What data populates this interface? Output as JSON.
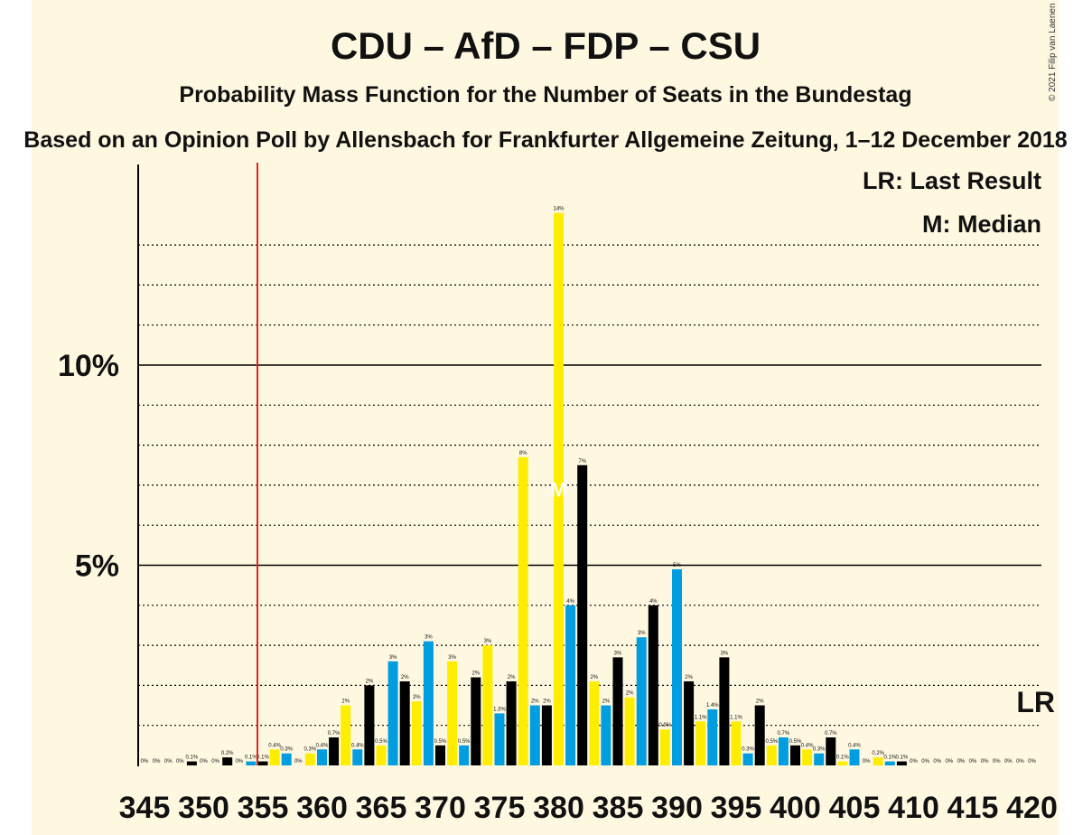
{
  "title": "CDU – AfD – FDP – CSU",
  "subtitle": "Probability Mass Function for the Number of Seats in the Bundestag",
  "subtitle2": "Based on an Opinion Poll by Allensbach for Frankfurter Allgemeine Zeitung, 1–12 December 2018",
  "copyright": "© 2021 Filip van Laenen",
  "legend": {
    "lr": "LR: Last Result",
    "m": "M: Median"
  },
  "lr_marker_label": "LR",
  "median_marker_label": "M",
  "colors": {
    "cdu": "#000000",
    "fdp": "#ffed00",
    "blue": "#009ee0",
    "lastresult": "#e2231a",
    "background": "#fff8e1"
  },
  "chart_data": {
    "type": "bar",
    "x_start": 345,
    "x_end": 420,
    "x_ticks": [
      345,
      350,
      355,
      360,
      365,
      370,
      375,
      380,
      385,
      390,
      395,
      400,
      405,
      410,
      415,
      420
    ],
    "y_ticks": [
      {
        "value": 5,
        "label": "5%"
      },
      {
        "value": 10,
        "label": "10%"
      }
    ],
    "ylim": [
      0,
      14
    ],
    "last_result": 355,
    "median": 380,
    "values": [
      0,
      0,
      0,
      0,
      0.1,
      0,
      0,
      0.2,
      0,
      0.1,
      0.1,
      0.4,
      0.3,
      0,
      0.3,
      0.4,
      0.7,
      1.5,
      0.4,
      2.0,
      0.5,
      2.6,
      2.1,
      1.6,
      3.1,
      0.5,
      2.6,
      0.5,
      2.2,
      3.0,
      1.3,
      2.1,
      7.7,
      1.5,
      1.5,
      13.8,
      4.0,
      7.5,
      2.1,
      1.5,
      2.7,
      1.7,
      3.2,
      4.0,
      0.9,
      4.9,
      2.1,
      1.1,
      1.4,
      2.7,
      1.1,
      0.3,
      1.5,
      0.5,
      0.7,
      0.5,
      0.4,
      0.3,
      0.7,
      0.1,
      0.4,
      0,
      0.2,
      0.1,
      0.1,
      0,
      0,
      0,
      0,
      0,
      0,
      0,
      0,
      0,
      0,
      0
    ],
    "labels": [
      "0%",
      "0%",
      "0%",
      "0%",
      "0.1%",
      "0%",
      "0%",
      "0.2%",
      "0%",
      "0.1%",
      "0.1%",
      "0.4%",
      "0.3%",
      "0%",
      "0.3%",
      "0.4%",
      "0.7%",
      "2%",
      "0.4%",
      "2%",
      "0.5%",
      "3%",
      "2%",
      "2%",
      "3%",
      "0.5%",
      "3%",
      "0.5%",
      "2%",
      "3%",
      "1.3%",
      "2%",
      "8%",
      "2%",
      "2%",
      "14%",
      "4%",
      "7%",
      "2%",
      "2%",
      "3%",
      "2%",
      "3%",
      "4%",
      "0.9%",
      "5%",
      "2%",
      "1.1%",
      "1.4%",
      "3%",
      "1.1%",
      "0.3%",
      "2%",
      "0.5%",
      "0.7%",
      "0.5%",
      "0.4%",
      "0.3%",
      "0.7%",
      "0.1%",
      "0.4%",
      "0%",
      "0.2%",
      "0.1%",
      "0.1%",
      "0%",
      "0%",
      "0%",
      "0%",
      "0%",
      "0%",
      "0%",
      "0%",
      "0%",
      "0%",
      "0%"
    ],
    "color_cycle": [
      "blue",
      "cdu",
      "fdp"
    ]
  }
}
